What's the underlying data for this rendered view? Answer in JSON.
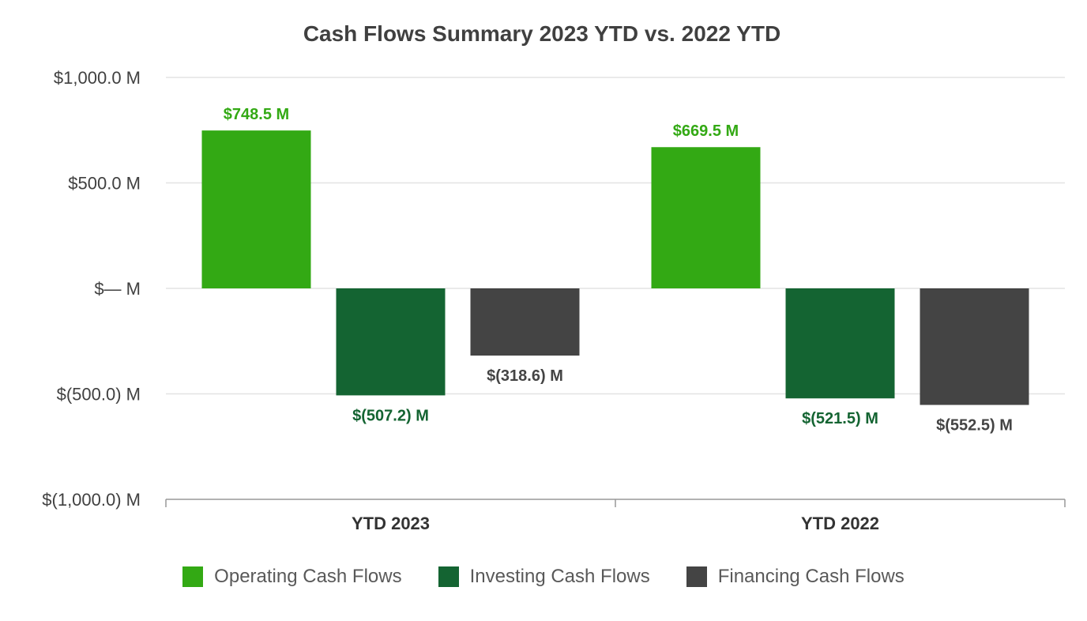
{
  "chart_data": {
    "type": "bar",
    "title": "Cash Flows Summary 2023 YTD vs. 2022 YTD",
    "categories": [
      "YTD 2023",
      "YTD 2022"
    ],
    "series": [
      {
        "name": "Operating Cash Flows",
        "color": "#33a914",
        "values": [
          748.5,
          669.5
        ],
        "labels": [
          "$748.5 M",
          "$669.5 M"
        ]
      },
      {
        "name": "Investing Cash Flows",
        "color": "#146432",
        "values": [
          -507.2,
          -521.5
        ],
        "labels": [
          "$(507.2) M",
          "$(521.5) M"
        ]
      },
      {
        "name": "Financing Cash Flows",
        "color": "#444444",
        "values": [
          -318.6,
          -552.5
        ],
        "labels": [
          "$(318.6) M",
          "$(552.5) M"
        ]
      }
    ],
    "ylim": [
      -1000,
      1000
    ],
    "yticks": [
      1000,
      500,
      0,
      -500,
      -1000
    ],
    "ytick_labels": [
      "$1,000.0 M",
      "$500.0 M",
      "$— M",
      "$(500.0) M",
      "$(1,000.0) M"
    ],
    "grid": true,
    "legend_position": "bottom"
  }
}
